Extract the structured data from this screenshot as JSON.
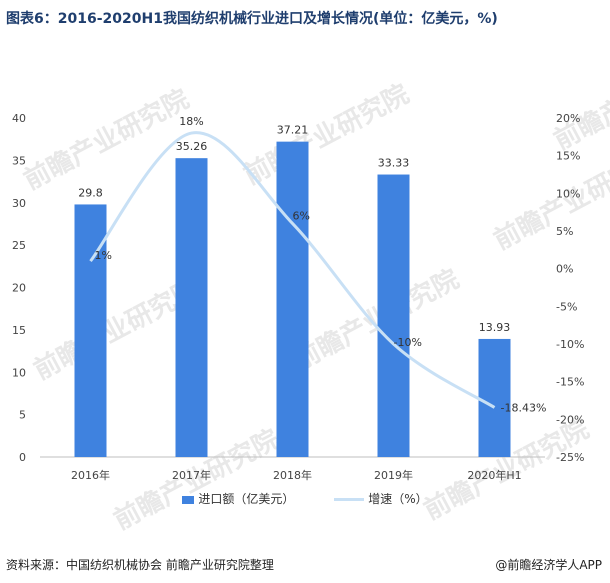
{
  "title": "图表6：2016-2020H1我国纺织机械行业进口及增长情况(单位：亿美元，%)",
  "chart_data": {
    "type": "bar+line",
    "categories": [
      "2016年",
      "2017年",
      "2018年",
      "2019年",
      "2020年H1"
    ],
    "series": [
      {
        "name": "进口额（亿美元）",
        "type": "bar",
        "axis": "left",
        "values": [
          29.8,
          35.26,
          37.21,
          33.33,
          13.93
        ],
        "labels": [
          "29.8",
          "35.26",
          "37.21",
          "33.33",
          "13.93"
        ]
      },
      {
        "name": "增速（%）",
        "type": "line",
        "axis": "right",
        "values": [
          1,
          18,
          6,
          -10,
          -18.43
        ],
        "labels": [
          "1%",
          "18%",
          "6%",
          "-10%",
          "-18.43%"
        ]
      }
    ],
    "y_left": {
      "ylim": [
        0,
        40
      ],
      "ticks": [
        "0",
        "5",
        "10",
        "15",
        "20",
        "25",
        "30",
        "35",
        "40"
      ]
    },
    "y_right": {
      "ylim": [
        -25,
        20
      ],
      "ticks": [
        "-25%",
        "-20%",
        "-15%",
        "-10%",
        "-5%",
        "0%",
        "5%",
        "10%",
        "15%",
        "20%"
      ]
    },
    "legend_position": "bottom",
    "grid": false,
    "colors": {
      "bar": "#3f82df",
      "line": "#c8e0f5"
    }
  },
  "legend": {
    "bar_label": "进口额（亿美元）",
    "line_label": "增速（%）"
  },
  "footer": {
    "source": "资料来源：中国纺织机械协会 前瞻产业研究院整理",
    "brand": "@前瞻经济学人APP"
  },
  "watermark": "前瞻产业研究院"
}
